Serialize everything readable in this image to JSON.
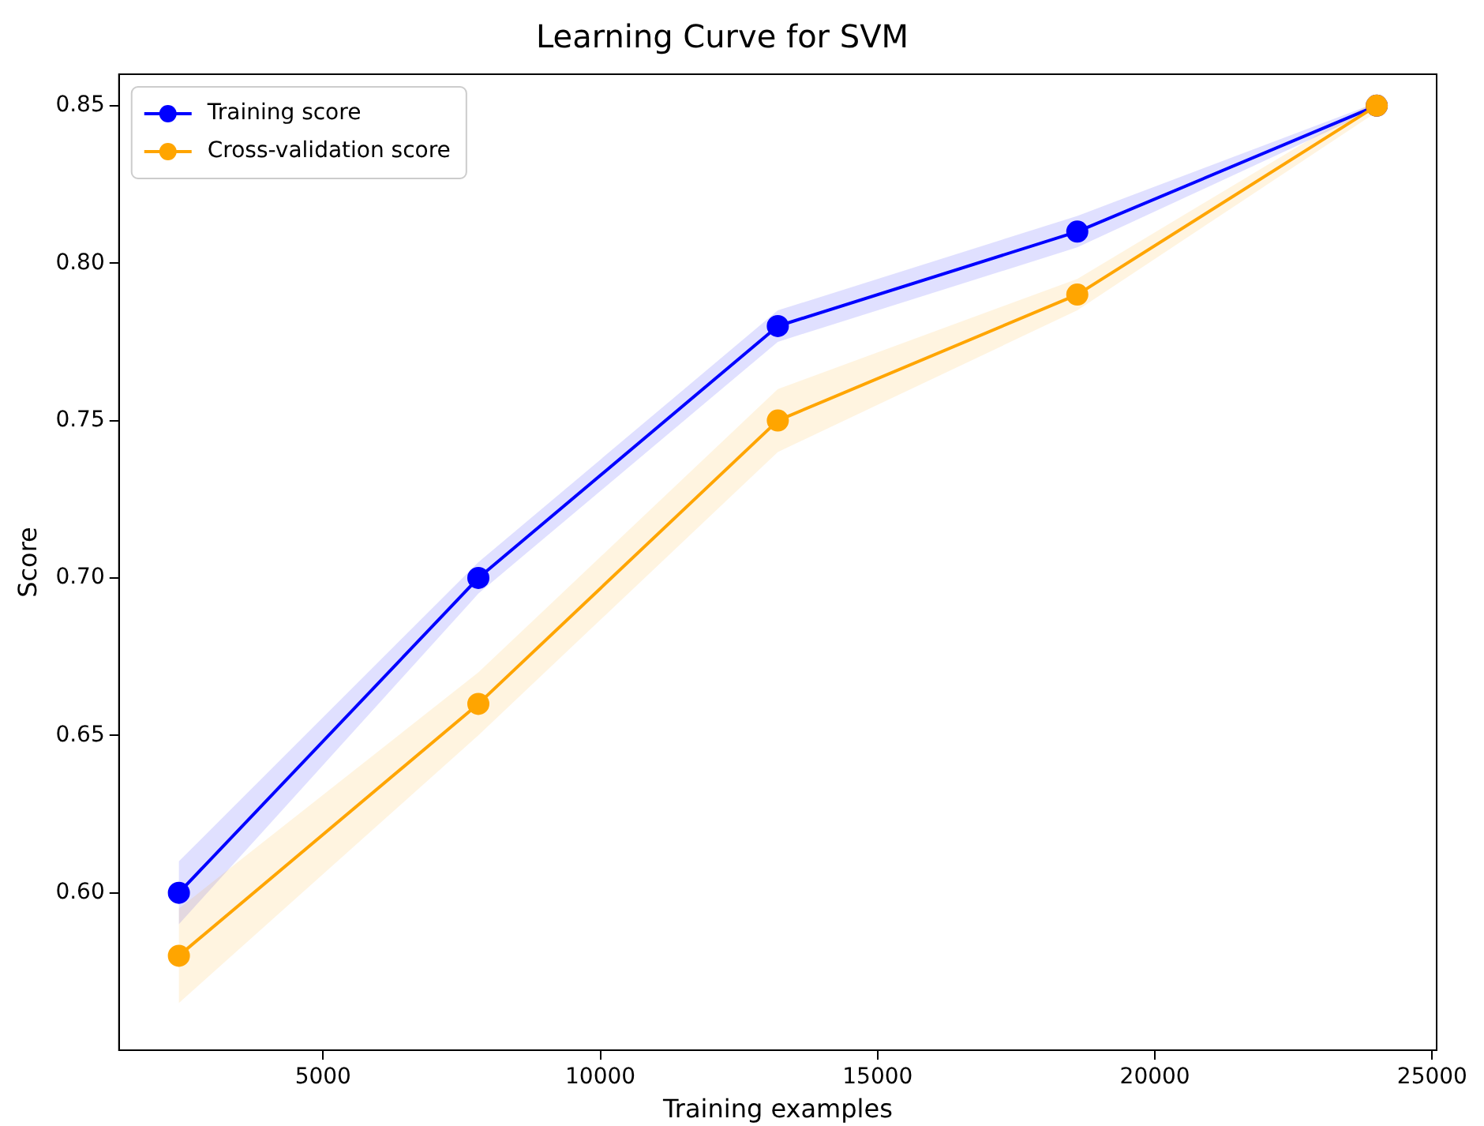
{
  "chart_data": {
    "type": "line",
    "title": "Learning Curve for SVM",
    "xlabel": "Training examples",
    "ylabel": "Score",
    "x": [
      2400,
      7800,
      13200,
      18600,
      24000
    ],
    "series": [
      {
        "name": "Training score",
        "color": "#0000ff",
        "values": [
          0.6,
          0.7,
          0.78,
          0.81,
          0.85
        ],
        "lower": [
          0.59,
          0.695,
          0.775,
          0.805,
          0.849
        ],
        "upper": [
          0.61,
          0.705,
          0.785,
          0.815,
          0.851
        ]
      },
      {
        "name": "Cross-validation score",
        "color": "#ffa500",
        "values": [
          0.58,
          0.66,
          0.75,
          0.79,
          0.85
        ],
        "lower": [
          0.565,
          0.65,
          0.74,
          0.785,
          0.848
        ],
        "upper": [
          0.595,
          0.67,
          0.76,
          0.795,
          0.852
        ]
      }
    ],
    "xlim": [
      1320,
      25080
    ],
    "xticks": [
      5000,
      10000,
      15000,
      20000,
      25000
    ],
    "ylim": [
      0.55,
      0.86
    ],
    "yticks": [
      {
        "value": 0.6,
        "label": "0.60"
      },
      {
        "value": 0.65,
        "label": "0.65"
      },
      {
        "value": 0.7,
        "label": "0.70"
      },
      {
        "value": 0.75,
        "label": "0.75"
      },
      {
        "value": 0.8,
        "label": "0.80"
      },
      {
        "value": 0.85,
        "label": "0.85"
      }
    ],
    "grid": false,
    "legend": "top left",
    "marker": "circle",
    "line_style": "solid"
  }
}
